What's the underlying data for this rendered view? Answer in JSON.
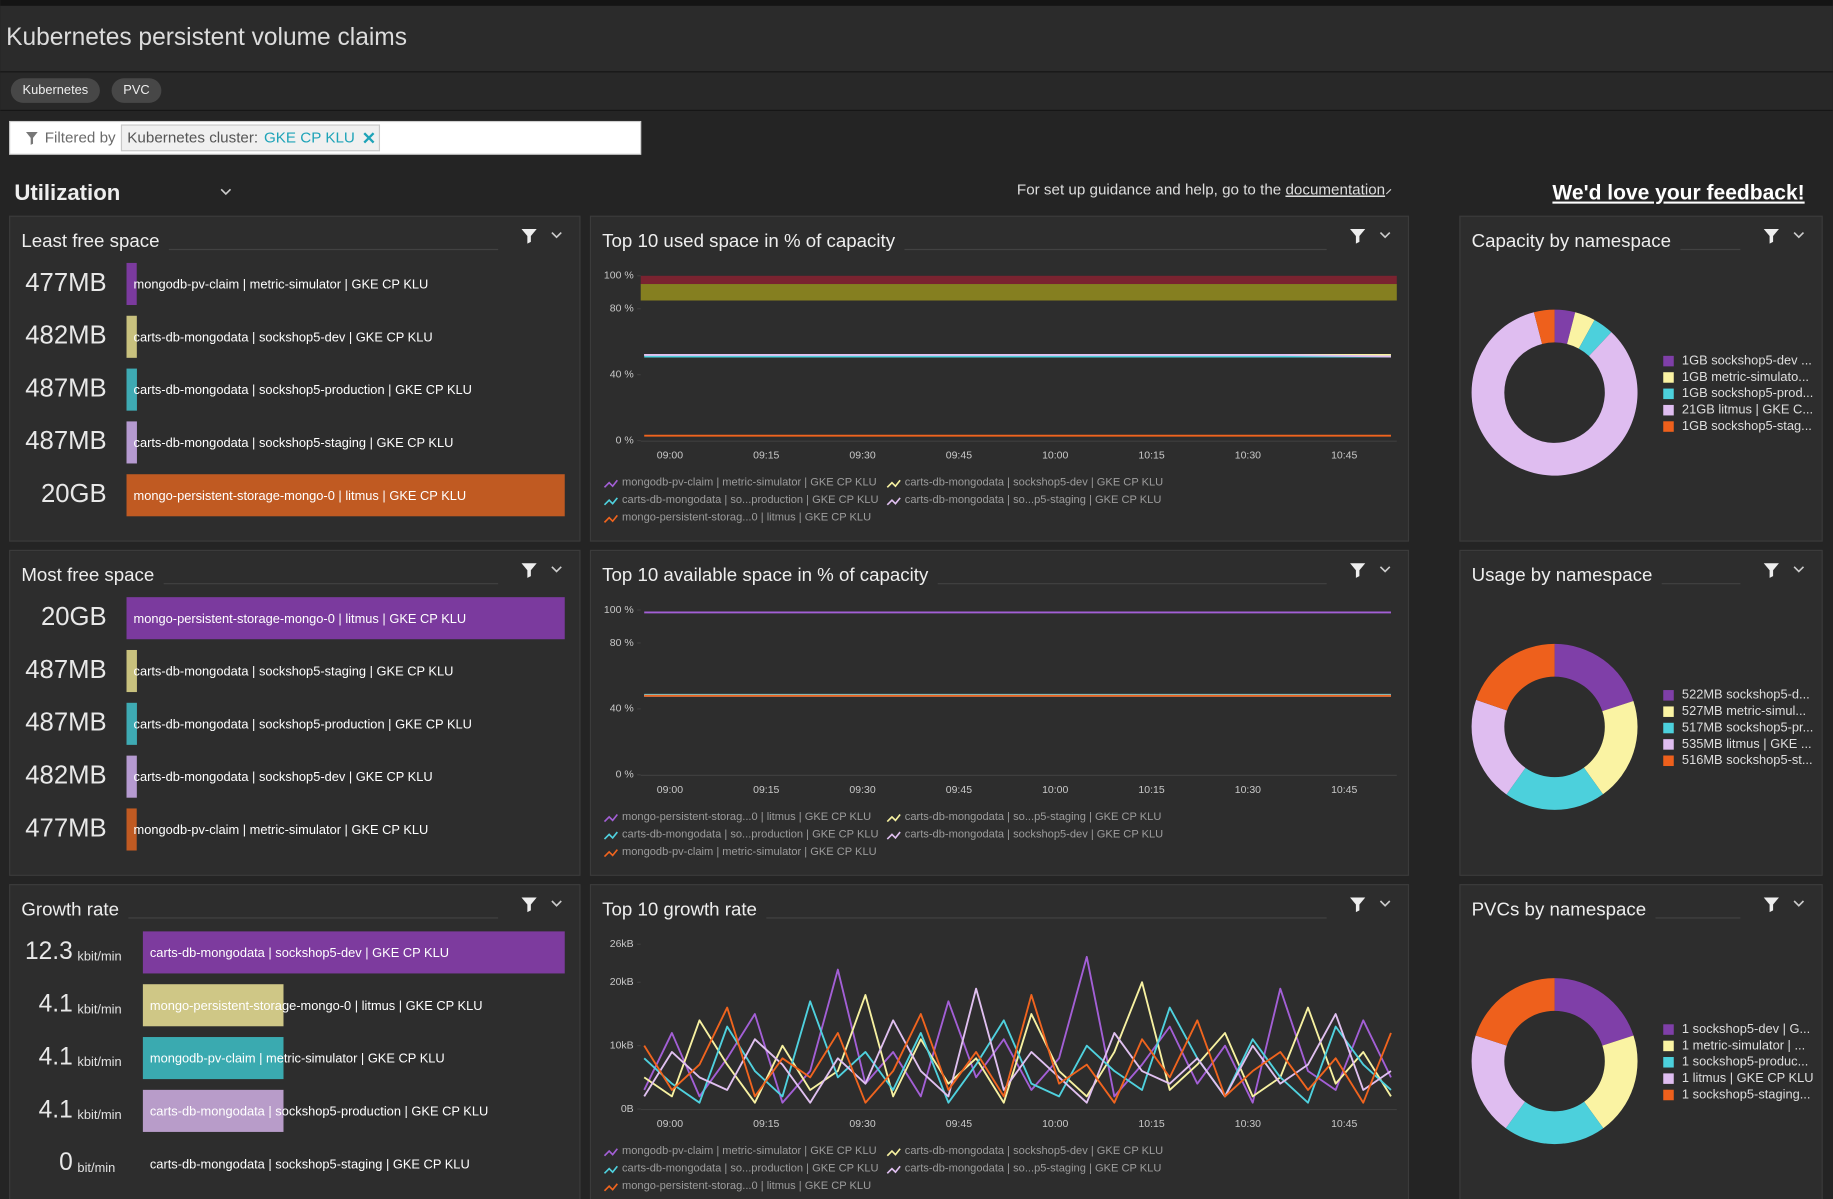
{
  "header": {
    "title": "Kubernetes persistent volume claims",
    "tags": [
      "Kubernetes",
      "PVC"
    ]
  },
  "filter": {
    "label": "Filtered by",
    "key": "Kubernetes cluster:",
    "value": "GKE CP KLU"
  },
  "section": {
    "title": "Utilization",
    "help": "For set up guidance and help, go to the",
    "link": "documentation",
    "feedback": "We'd love your feedback!"
  },
  "lists": [
    {
      "type": "bar",
      "title": "Least free space",
      "items": [
        {
          "value": 477,
          "value_label": "477MB",
          "label": "mongodb-pv-claim | metric-simulator | GKE CP KLU",
          "color": "#7b3a9e"
        },
        {
          "value": 482,
          "value_label": "482MB",
          "label": "carts-db-mongodata | sockshop5-dev | GKE CP KLU",
          "color": "#c8c17e"
        },
        {
          "value": 487,
          "value_label": "487MB",
          "label": "carts-db-mongodata | sockshop5-production | GKE CP KLU",
          "color": "#3eaab3"
        },
        {
          "value": 487,
          "value_label": "487MB",
          "label": "carts-db-mongodata | sockshop5-staging | GKE CP KLU",
          "color": "#b59ad0"
        },
        {
          "value": 20480,
          "value_label": "20GB",
          "label": "mongo-persistent-storage-mongo-0 | litmus | GKE CP KLU",
          "color": "#c05a22"
        }
      ]
    },
    {
      "type": "bar",
      "title": "Most free space",
      "items": [
        {
          "value": 20480,
          "value_label": "20GB",
          "label": "mongo-persistent-storage-mongo-0 | litmus | GKE CP KLU",
          "color": "#7b3a9e"
        },
        {
          "value": 487,
          "value_label": "487MB",
          "label": "carts-db-mongodata | sockshop5-staging | GKE CP KLU",
          "color": "#c8c17e"
        },
        {
          "value": 487,
          "value_label": "487MB",
          "label": "carts-db-mongodata | sockshop5-production | GKE CP KLU",
          "color": "#3eaab3"
        },
        {
          "value": 482,
          "value_label": "482MB",
          "label": "carts-db-mongodata | sockshop5-dev | GKE CP KLU",
          "color": "#b59ad0"
        },
        {
          "value": 477,
          "value_label": "477MB",
          "label": "mongodb-pv-claim | metric-simulator | GKE CP KLU",
          "color": "#c05a22"
        }
      ]
    },
    {
      "type": "bar",
      "title": "Growth rate",
      "items": [
        {
          "value": 12.3,
          "unit": "kbit/min",
          "label": "carts-db-mongodata | sockshop5-dev | GKE CP KLU",
          "color": "#7d3b9e"
        },
        {
          "value": 4.1,
          "unit": "kbit/min",
          "label": "mongo-persistent-storage-mongo-0 | litmus | GKE CP KLU",
          "color": "#cfc786"
        },
        {
          "value": 4.1,
          "unit": "kbit/min",
          "label": "mongodb-pv-claim | metric-simulator | GKE CP KLU",
          "color": "#3aaab0"
        },
        {
          "value": 4.1,
          "unit": "kbit/min",
          "label": "carts-db-mongodata | sockshop5-production | GKE CP KLU",
          "color": "#b89cc9"
        },
        {
          "value": 0,
          "unit": "bit/min",
          "label": "carts-db-mongodata | sockshop5-staging | GKE CP KLU",
          "color": "#c05a22"
        }
      ]
    }
  ],
  "charts": [
    {
      "type": "line",
      "title": "Top 10 used space in % of capacity",
      "ylim": [
        0,
        100
      ],
      "yticks": [
        {
          "value": 0,
          "label": "0 %"
        },
        {
          "value": 40,
          "label": "40 %"
        },
        {
          "value": 80,
          "label": "80 %"
        },
        {
          "value": 100,
          "label": "100 %"
        }
      ],
      "x_labels": [
        "09:00",
        "09:15",
        "09:30",
        "09:45",
        "10:00",
        "10:15",
        "10:30",
        "10:45"
      ],
      "bands": [
        {
          "from": 95,
          "to": 100,
          "color": "#7a2330"
        },
        {
          "from": 85,
          "to": 95,
          "color": "#857f20"
        }
      ],
      "series": [
        {
          "name": "mongodb-pv-claim | metric-simulator | GKE CP KLU",
          "color": "#a35fd6",
          "values": [
            52,
            52,
            52,
            52,
            52,
            52,
            52,
            51
          ]
        },
        {
          "name": "carts-db-mongodata | sockshop5-dev | GKE CP KLU",
          "color": "#f7f1a1",
          "values": [
            52,
            52,
            52,
            52,
            52,
            52,
            52,
            52
          ]
        },
        {
          "name": "carts-db-mongodata | so...production | GKE CP KLU",
          "color": "#4fd1de",
          "values": [
            51,
            51,
            51,
            51,
            51,
            51,
            51,
            51
          ]
        },
        {
          "name": "carts-db-mongodata | so...p5-staging | GKE CP KLU",
          "color": "#e0c0f0",
          "values": [
            52,
            52,
            52,
            52,
            52,
            52,
            52,
            51
          ]
        },
        {
          "name": "mongo-persistent-storag...0 | litmus | GKE CP KLU",
          "color": "#f0641e",
          "values": [
            3,
            3,
            3,
            3,
            3,
            3,
            3,
            3
          ]
        }
      ]
    },
    {
      "type": "line",
      "title": "Top 10 available space in % of capacity",
      "ylim": [
        0,
        100
      ],
      "yticks": [
        {
          "value": 0,
          "label": "0 %"
        },
        {
          "value": 40,
          "label": "40 %"
        },
        {
          "value": 80,
          "label": "80 %"
        },
        {
          "value": 100,
          "label": "100 %"
        }
      ],
      "x_labels": [
        "09:00",
        "09:15",
        "09:30",
        "09:45",
        "10:00",
        "10:15",
        "10:30",
        "10:45"
      ],
      "bands": [],
      "series": [
        {
          "name": "mongo-persistent-storag...0 | litmus | GKE CP KLU",
          "color": "#a35fd6",
          "values": [
            98.5,
            98.5,
            98.5,
            98.5,
            98.5,
            98.5,
            98.5,
            98.5
          ]
        },
        {
          "name": "carts-db-mongodata | so...p5-staging | GKE CP KLU",
          "color": "#f7f1a1",
          "values": [
            48,
            48,
            48,
            48,
            48,
            48,
            48,
            48
          ]
        },
        {
          "name": "carts-db-mongodata | so...production | GKE CP KLU",
          "color": "#4fd1de",
          "values": [
            48.5,
            48.5,
            48.5,
            48.5,
            48.5,
            48.5,
            48.5,
            48.5
          ]
        },
        {
          "name": "carts-db-mongodata | sockshop5-dev | GKE CP KLU",
          "color": "#e0c0f0",
          "values": [
            48,
            48,
            48,
            48,
            48,
            48,
            48,
            48
          ]
        },
        {
          "name": "mongodb-pv-claim | metric-simulator | GKE CP KLU",
          "color": "#f0641e",
          "values": [
            48,
            48,
            48,
            48,
            48,
            48,
            48,
            48
          ]
        }
      ]
    },
    {
      "type": "line",
      "title": "Top 10 growth rate",
      "ylim": [
        0,
        26
      ],
      "yticks": [
        {
          "value": 0,
          "label": "0B"
        },
        {
          "value": 10,
          "label": "10kB"
        },
        {
          "value": 20,
          "label": "20kB"
        },
        {
          "value": 26,
          "label": "26kB"
        }
      ],
      "x_labels": [
        "09:00",
        "09:15",
        "09:30",
        "09:45",
        "10:00",
        "10:15",
        "10:30",
        "10:45"
      ],
      "bands": [],
      "series": [
        {
          "name": "mongodb-pv-claim | metric-simulator | GKE CP KLU",
          "color": "#a35fd6",
          "values": [
            3,
            12,
            2,
            8,
            15,
            1,
            6,
            22,
            4,
            9,
            2,
            17,
            5,
            11,
            3,
            8,
            24,
            2,
            7,
            13,
            4,
            10,
            1,
            19,
            6,
            3,
            14,
            5
          ]
        },
        {
          "name": "carts-db-mongodata | sockshop5-dev | GKE CP KLU",
          "color": "#f7f1a1",
          "values": [
            5,
            2,
            14,
            7,
            1,
            10,
            3,
            6,
            18,
            2,
            11,
            4,
            8,
            1,
            15,
            6,
            2,
            9,
            20,
            3,
            7,
            12,
            2,
            5,
            16,
            4,
            9,
            2
          ]
        },
        {
          "name": "carts-db-mongodata | so...production | GKE CP KLU",
          "color": "#4fd1de",
          "values": [
            8,
            4,
            1,
            13,
            6,
            2,
            17,
            5,
            9,
            3,
            12,
            1,
            7,
            14,
            4,
            2,
            10,
            6,
            3,
            16,
            8,
            2,
            11,
            5,
            1,
            13,
            7,
            3
          ]
        },
        {
          "name": "carts-db-mongodata | so...p5-staging | GKE CP KLU",
          "color": "#e0c0f0",
          "values": [
            2,
            9,
            5,
            3,
            11,
            7,
            1,
            8,
            4,
            14,
            6,
            2,
            19,
            3,
            9,
            5,
            1,
            12,
            6,
            4,
            8,
            2,
            10,
            4,
            7,
            15,
            3,
            6
          ]
        },
        {
          "name": "mongo-persistent-storag...0 | litmus | GKE CP KLU",
          "color": "#f0641e",
          "values": [
            10,
            3,
            7,
            16,
            2,
            8,
            5,
            12,
            1,
            6,
            15,
            3,
            9,
            2,
            18,
            4,
            7,
            1,
            11,
            5,
            14,
            2,
            6,
            9,
            3,
            8,
            1,
            12
          ]
        }
      ]
    }
  ],
  "donuts": [
    {
      "type": "pie",
      "title": "Capacity by namespace",
      "items": [
        {
          "value": 1,
          "label": "1GB sockshop5-dev ...",
          "color": "#7f3fa8"
        },
        {
          "value": 1,
          "label": "1GB metric-simulato...",
          "color": "#faf3a3"
        },
        {
          "value": 1,
          "label": "1GB sockshop5-prod...",
          "color": "#4cd0dc"
        },
        {
          "value": 21,
          "label": "21GB litmus | GKE C...",
          "color": "#dfbdf0"
        },
        {
          "value": 1,
          "label": "1GB sockshop5-stag...",
          "color": "#ee601c"
        }
      ]
    },
    {
      "type": "pie",
      "title": "Usage by namespace",
      "items": [
        {
          "value": 522,
          "label": "522MB sockshop5-d...",
          "color": "#7f3fa8"
        },
        {
          "value": 527,
          "label": "527MB metric-simul...",
          "color": "#faf3a3"
        },
        {
          "value": 517,
          "label": "517MB sockshop5-pr...",
          "color": "#4cd0dc"
        },
        {
          "value": 535,
          "label": "535MB litmus | GKE ...",
          "color": "#dfbdf0"
        },
        {
          "value": 516,
          "label": "516MB sockshop5-st...",
          "color": "#ee601c"
        }
      ]
    },
    {
      "type": "pie",
      "title": "PVCs by namespace",
      "items": [
        {
          "value": 1,
          "label": "1 sockshop5-dev | G...",
          "color": "#7f3fa8"
        },
        {
          "value": 1,
          "label": "1 metric-simulator | ...",
          "color": "#faf3a3"
        },
        {
          "value": 1,
          "label": "1 sockshop5-produc...",
          "color": "#4cd0dc"
        },
        {
          "value": 1,
          "label": "1 litmus | GKE CP KLU",
          "color": "#dfbdf0"
        },
        {
          "value": 1,
          "label": "1 sockshop5-staging...",
          "color": "#ee601c"
        }
      ]
    }
  ]
}
